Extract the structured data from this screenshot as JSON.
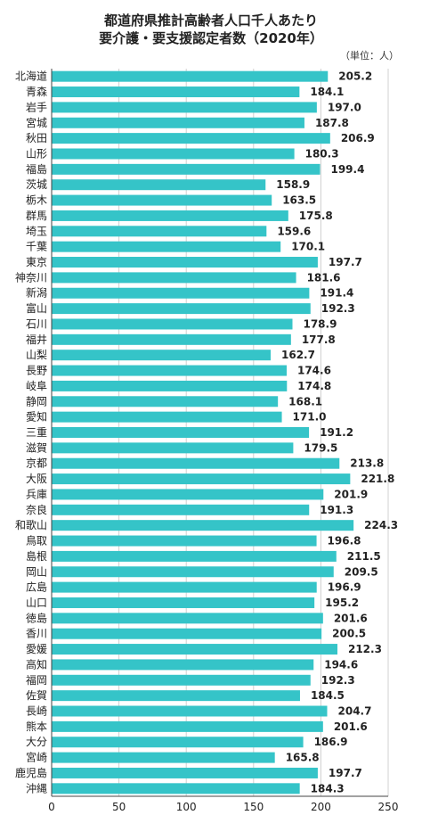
{
  "chart_data": {
    "type": "bar",
    "orientation": "horizontal",
    "title_lines": [
      "都道府県推計高齢者人口千人あたり",
      "要介護・要支援認定者数（2020年）"
    ],
    "unit_note": "（単位：人）",
    "xlim": [
      0,
      250
    ],
    "x_ticks": [
      0,
      50,
      100,
      150,
      200,
      250
    ],
    "grid": true,
    "bar_color": "#35C4C8",
    "categories": [
      "北海道",
      "青森",
      "岩手",
      "宮城",
      "秋田",
      "山形",
      "福島",
      "茨城",
      "栃木",
      "群馬",
      "埼玉",
      "千葉",
      "東京",
      "神奈川",
      "新潟",
      "富山",
      "石川",
      "福井",
      "山梨",
      "長野",
      "岐阜",
      "静岡",
      "愛知",
      "三重",
      "滋賀",
      "京都",
      "大阪",
      "兵庫",
      "奈良",
      "和歌山",
      "鳥取",
      "島根",
      "岡山",
      "広島",
      "山口",
      "徳島",
      "香川",
      "愛媛",
      "高知",
      "福岡",
      "佐賀",
      "長崎",
      "熊本",
      "大分",
      "宮崎",
      "鹿児島",
      "沖縄"
    ],
    "values": [
      205.2,
      184.1,
      197.0,
      187.8,
      206.9,
      180.3,
      199.4,
      158.9,
      163.5,
      175.8,
      159.6,
      170.1,
      197.7,
      181.6,
      191.4,
      192.3,
      178.9,
      177.8,
      162.7,
      174.6,
      174.8,
      168.1,
      171.0,
      191.2,
      179.5,
      213.8,
      221.8,
      201.9,
      191.3,
      224.3,
      196.8,
      211.5,
      209.5,
      196.9,
      195.2,
      201.6,
      200.5,
      212.3,
      194.6,
      192.3,
      184.5,
      204.7,
      201.6,
      186.9,
      165.8,
      197.7,
      184.3
    ]
  }
}
